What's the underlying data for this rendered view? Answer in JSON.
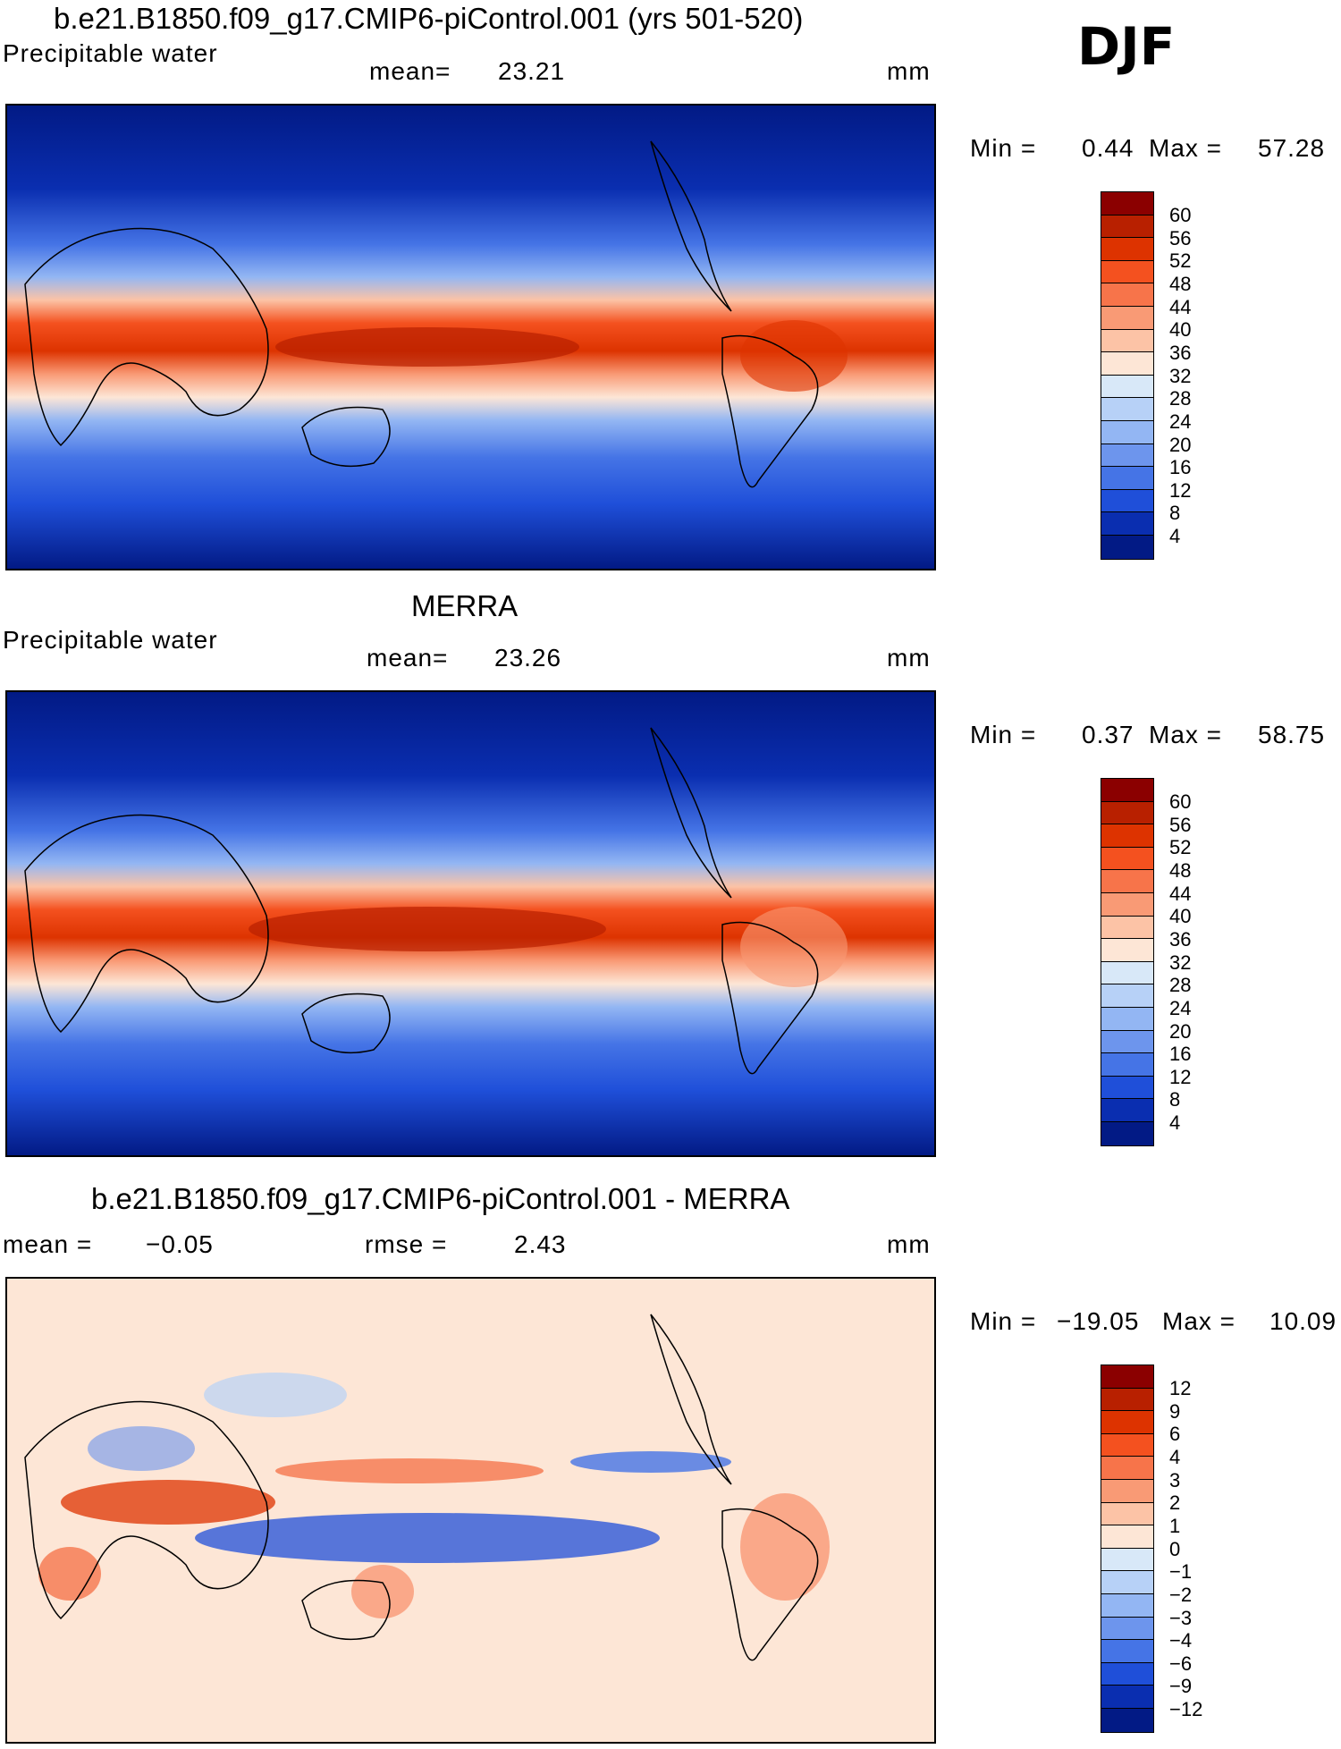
{
  "season": "DJF",
  "units": "mm",
  "panels": [
    {
      "title": "b.e21.B1850.f09_g17.CMIP6-piControl.001 (yrs 501-520)",
      "variable": "Precipitable water",
      "stat_label": "mean=",
      "stat_value": "23.21",
      "min_label": "Min =",
      "min_value": "0.44",
      "max_label": "Max =",
      "max_value": "57.28",
      "levels": [
        "60",
        "56",
        "52",
        "48",
        "44",
        "40",
        "36",
        "32",
        "28",
        "24",
        "20",
        "16",
        "12",
        "8",
        "4"
      ],
      "colors": [
        "#8b0000",
        "#b82000",
        "#dd3300",
        "#f4511f",
        "#f7744a",
        "#f99a75",
        "#fcc3a6",
        "#fde6d6",
        "#d8e8f8",
        "#b7d1f7",
        "#93b6f3",
        "#6d95ed",
        "#4574e6",
        "#1f4fd9",
        "#0a2eb0",
        "#021a85"
      ]
    },
    {
      "title": "MERRA",
      "variable": "Precipitable water",
      "stat_label": "mean=",
      "stat_value": "23.26",
      "min_label": "Min =",
      "min_value": "0.37",
      "max_label": "Max =",
      "max_value": "58.75",
      "levels": [
        "60",
        "56",
        "52",
        "48",
        "44",
        "40",
        "36",
        "32",
        "28",
        "24",
        "20",
        "16",
        "12",
        "8",
        "4"
      ],
      "colors": [
        "#8b0000",
        "#b82000",
        "#dd3300",
        "#f4511f",
        "#f7744a",
        "#f99a75",
        "#fcc3a6",
        "#fde6d6",
        "#d8e8f8",
        "#b7d1f7",
        "#93b6f3",
        "#6d95ed",
        "#4574e6",
        "#1f4fd9",
        "#0a2eb0",
        "#021a85"
      ]
    },
    {
      "title": "b.e21.B1850.f09_g17.CMIP6-piControl.001 - MERRA",
      "stat_label": "mean =",
      "stat_value": "−0.05",
      "rmse_label": "rmse =",
      "rmse_value": "2.43",
      "min_label": "Min =",
      "min_value": "−19.05",
      "max_label": "Max =",
      "max_value": "10.09",
      "levels": [
        "12",
        "9",
        "6",
        "4",
        "3",
        "2",
        "1",
        "0",
        "−1",
        "−2",
        "−3",
        "−4",
        "−6",
        "−9",
        "−12"
      ],
      "colors": [
        "#8b0000",
        "#b82000",
        "#dd3300",
        "#f4511f",
        "#f7744a",
        "#f99a75",
        "#fcc3a6",
        "#fde6d6",
        "#d8e8f8",
        "#b7d1f7",
        "#93b6f3",
        "#6d95ed",
        "#4574e6",
        "#1f4fd9",
        "#0a2eb0",
        "#021a85"
      ]
    }
  ]
}
